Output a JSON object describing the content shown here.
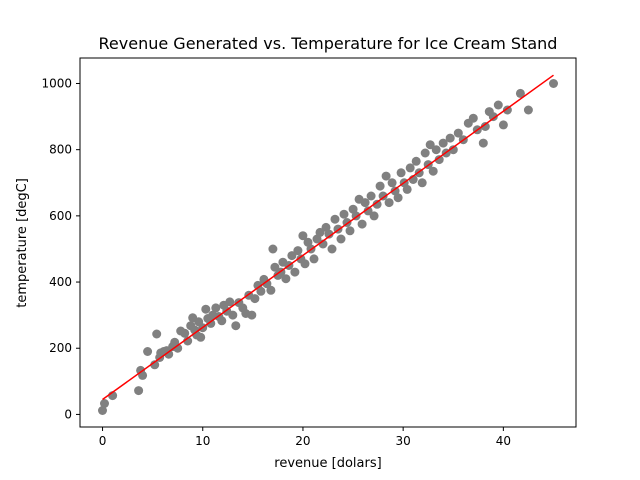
{
  "chart_data": {
    "type": "scatter",
    "title": "Revenue Generated vs. Temperature for Ice Cream Stand",
    "xlabel": "revenue [dolars]",
    "ylabel": "temperature [degC]",
    "xlim": [
      -2.25,
      47.25
    ],
    "ylim": [
      -38,
      1077
    ],
    "xticks": [
      0,
      10,
      20,
      30,
      40
    ],
    "yticks": [
      0,
      200,
      400,
      600,
      800,
      1000
    ],
    "grid": false,
    "legend": "none",
    "colors": {
      "points": "#808080",
      "fit_line": "#ff0000"
    },
    "series": [
      {
        "type": "scatter",
        "points": [
          [
            0.0,
            12
          ],
          [
            0.2,
            33
          ],
          [
            1.0,
            57
          ],
          [
            3.6,
            72
          ],
          [
            3.8,
            133
          ],
          [
            4.0,
            118
          ],
          [
            4.5,
            190
          ],
          [
            5.2,
            150
          ],
          [
            5.4,
            243
          ],
          [
            5.7,
            172
          ],
          [
            5.8,
            186
          ],
          [
            6.1,
            190
          ],
          [
            6.4,
            193
          ],
          [
            6.6,
            182
          ],
          [
            7.0,
            205
          ],
          [
            7.2,
            218
          ],
          [
            7.5,
            200
          ],
          [
            7.8,
            252
          ],
          [
            8.2,
            245
          ],
          [
            8.5,
            222
          ],
          [
            8.8,
            268
          ],
          [
            9.0,
            292
          ],
          [
            9.2,
            255
          ],
          [
            9.4,
            240
          ],
          [
            9.6,
            280
          ],
          [
            9.8,
            233
          ],
          [
            10.0,
            262
          ],
          [
            10.3,
            318
          ],
          [
            10.5,
            290
          ],
          [
            10.8,
            275
          ],
          [
            11.0,
            300
          ],
          [
            11.3,
            322
          ],
          [
            11.6,
            296
          ],
          [
            11.9,
            283
          ],
          [
            12.1,
            330
          ],
          [
            12.4,
            312
          ],
          [
            12.7,
            340
          ],
          [
            13.0,
            300
          ],
          [
            13.3,
            268
          ],
          [
            13.6,
            338
          ],
          [
            14.0,
            322
          ],
          [
            14.3,
            305
          ],
          [
            14.6,
            360
          ],
          [
            14.9,
            300
          ],
          [
            15.2,
            350
          ],
          [
            15.5,
            390
          ],
          [
            15.8,
            372
          ],
          [
            16.1,
            408
          ],
          [
            16.4,
            395
          ],
          [
            16.8,
            375
          ],
          [
            17.0,
            500
          ],
          [
            17.2,
            445
          ],
          [
            17.5,
            420
          ],
          [
            17.8,
            430
          ],
          [
            18.0,
            460
          ],
          [
            18.3,
            410
          ],
          [
            18.6,
            450
          ],
          [
            18.9,
            480
          ],
          [
            19.2,
            430
          ],
          [
            19.5,
            495
          ],
          [
            19.8,
            470
          ],
          [
            20.0,
            540
          ],
          [
            20.2,
            455
          ],
          [
            20.5,
            520
          ],
          [
            20.8,
            500
          ],
          [
            21.1,
            470
          ],
          [
            21.4,
            530
          ],
          [
            21.7,
            550
          ],
          [
            22.0,
            515
          ],
          [
            22.3,
            565
          ],
          [
            22.6,
            545
          ],
          [
            22.9,
            500
          ],
          [
            23.2,
            590
          ],
          [
            23.5,
            560
          ],
          [
            23.8,
            530
          ],
          [
            24.1,
            605
          ],
          [
            24.4,
            580
          ],
          [
            24.7,
            555
          ],
          [
            25.0,
            620
          ],
          [
            25.3,
            600
          ],
          [
            25.6,
            650
          ],
          [
            25.9,
            575
          ],
          [
            26.2,
            640
          ],
          [
            26.5,
            615
          ],
          [
            26.8,
            660
          ],
          [
            27.1,
            600
          ],
          [
            27.4,
            635
          ],
          [
            27.7,
            690
          ],
          [
            28.0,
            660
          ],
          [
            28.3,
            720
          ],
          [
            28.6,
            640
          ],
          [
            28.9,
            700
          ],
          [
            29.2,
            675
          ],
          [
            29.5,
            655
          ],
          [
            29.8,
            730
          ],
          [
            30.1,
            700
          ],
          [
            30.4,
            680
          ],
          [
            30.7,
            745
          ],
          [
            31.0,
            710
          ],
          [
            31.3,
            765
          ],
          [
            31.6,
            730
          ],
          [
            31.9,
            700
          ],
          [
            32.2,
            790
          ],
          [
            32.5,
            755
          ],
          [
            32.7,
            815
          ],
          [
            33.0,
            735
          ],
          [
            33.3,
            800
          ],
          [
            33.6,
            770
          ],
          [
            34.0,
            820
          ],
          [
            34.3,
            790
          ],
          [
            34.7,
            835
          ],
          [
            35.0,
            800
          ],
          [
            35.5,
            850
          ],
          [
            36.0,
            830
          ],
          [
            36.5,
            880
          ],
          [
            37.0,
            895
          ],
          [
            37.4,
            860
          ],
          [
            38.0,
            820
          ],
          [
            38.2,
            870
          ],
          [
            38.6,
            915
          ],
          [
            39.0,
            900
          ],
          [
            39.5,
            935
          ],
          [
            40.0,
            875
          ],
          [
            40.4,
            920
          ],
          [
            41.7,
            970
          ],
          [
            42.5,
            920
          ],
          [
            45.0,
            1000
          ]
        ]
      },
      {
        "type": "line",
        "points": [
          [
            0.0,
            45
          ],
          [
            45.0,
            1025
          ]
        ]
      }
    ]
  }
}
